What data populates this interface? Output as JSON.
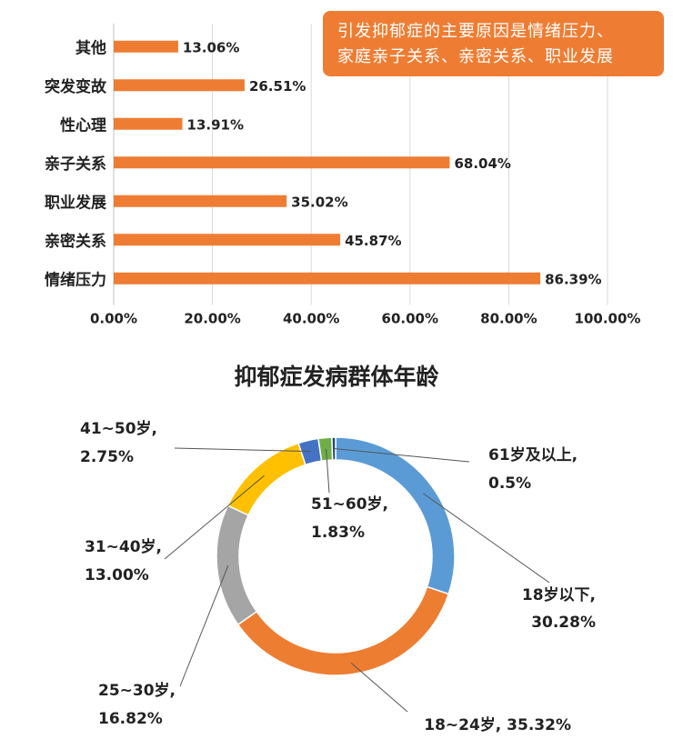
{
  "chart_data": [
    {
      "type": "bar",
      "orientation": "horizontal",
      "categories": [
        "其他",
        "突发变故",
        "性心理",
        "亲子关系",
        "职业发展",
        "亲密关系",
        "情绪压力"
      ],
      "values": [
        13.06,
        26.51,
        13.91,
        68.04,
        35.02,
        45.87,
        86.39
      ],
      "value_labels": [
        "13.06%",
        "26.51%",
        "13.91%",
        "68.04%",
        "35.02%",
        "45.87%",
        "86.39%"
      ],
      "x_ticks": [
        "0.00%",
        "20.00%",
        "40.00%",
        "60.00%",
        "80.00%",
        "100.00%"
      ],
      "xlim": [
        0,
        100
      ],
      "grid": true,
      "bar_color": "#ee7d33",
      "annotation": {
        "lines": [
          "引发抑郁症的主要原因是情绪压力、",
          "家庭亲子关系、亲密关系、职业发展"
        ],
        "background": "#ee7d33",
        "placement": "top-right"
      }
    },
    {
      "type": "pie",
      "style": "donut",
      "title": "抑郁症发病群体年龄",
      "slices": [
        {
          "name": "18岁以下",
          "value": 30.28,
          "color": "#5b9bd5",
          "label_name": "18岁以下,",
          "label_value": "30.28%"
        },
        {
          "name": "18~24岁",
          "value": 35.32,
          "color": "#ed7d31",
          "label_name": "18~24岁,",
          "label_value": "35.32%"
        },
        {
          "name": "25~30岁",
          "value": 16.82,
          "color": "#a5a5a5",
          "label_name": "25~30岁,",
          "label_value": "16.82%"
        },
        {
          "name": "31~40岁",
          "value": 13.0,
          "color": "#ffc000",
          "label_name": "31~40岁,",
          "label_value": "13.00%"
        },
        {
          "name": "41~50岁",
          "value": 2.75,
          "color": "#4472c4",
          "label_name": "41~50岁,",
          "label_value": "2.75%"
        },
        {
          "name": "51~60岁",
          "value": 1.83,
          "color": "#70ad47",
          "label_name": "51~60岁,",
          "label_value": "1.83%"
        },
        {
          "name": "61岁及以上",
          "value": 0.5,
          "color": "#264478",
          "label_name": "61岁及以上,",
          "label_value": "0.5%"
        }
      ]
    }
  ]
}
